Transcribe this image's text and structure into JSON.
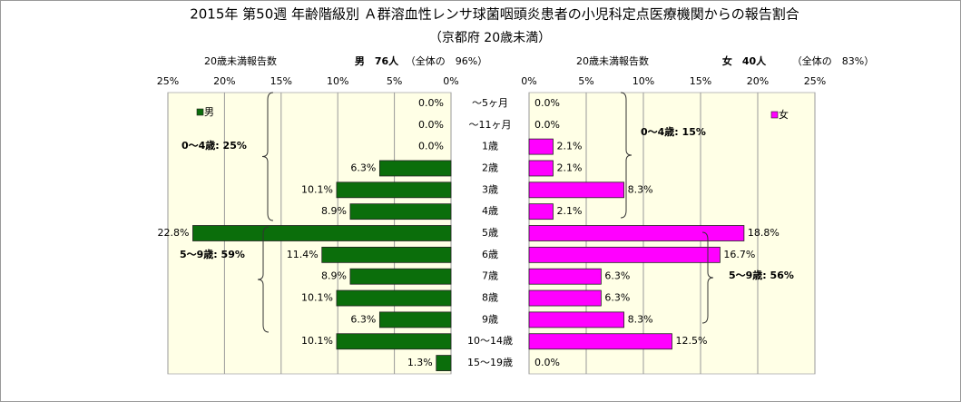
{
  "chart_data": {
    "type": "butterfly",
    "title": "2015年 第50週 年齢階級別 Ａ群溶血性レンサ球菌咽頭炎患者の小児科定点医療機関からの報告割合",
    "subtitle": "（京都府 20歳未満）",
    "categories": [
      "～5ヶ月",
      "～11ヶ月",
      "1歳",
      "2歳",
      "3歳",
      "4歳",
      "5歳",
      "6歳",
      "7歳",
      "8歳",
      "9歳",
      "10～14歳",
      "15～19歳"
    ],
    "series": [
      {
        "name": "男",
        "color": "#0b6e0b",
        "header": {
          "label": "20歳未満報告数",
          "count": "男　76人",
          "share": "（全体の　96%）"
        },
        "values": [
          0.0,
          0.0,
          0.0,
          6.3,
          10.1,
          8.9,
          22.8,
          11.4,
          8.9,
          10.1,
          6.3,
          10.1,
          1.3
        ],
        "value_labels": [
          "0.0%",
          "0.0%",
          "0.0%",
          "6.3%",
          "10.1%",
          "8.9%",
          "22.8%",
          "11.4%",
          "8.9%",
          "10.1%",
          "6.3%",
          "10.1%",
          "1.3%"
        ],
        "xlim": [
          0,
          25
        ],
        "xticks": [
          {
            "value": 0,
            "label": "0%"
          },
          {
            "value": 5,
            "label": "5%"
          },
          {
            "value": 10,
            "label": "10%"
          },
          {
            "value": 15,
            "label": "15%"
          },
          {
            "value": 20,
            "label": "20%"
          },
          {
            "value": 25,
            "label": "25%"
          }
        ],
        "annotations": [
          "0～4歳: 25%",
          "5～9歳: 59%"
        ]
      },
      {
        "name": "女",
        "color": "#ff00ff",
        "header": {
          "label": "20歳未満報告数",
          "count": "女　40人",
          "share": "（全体の　83%）"
        },
        "values": [
          0.0,
          0.0,
          2.1,
          2.1,
          8.3,
          2.1,
          18.8,
          16.7,
          6.3,
          6.3,
          8.3,
          12.5,
          0.0
        ],
        "value_labels": [
          "0.0%",
          "0.0%",
          "2.1%",
          "2.1%",
          "8.3%",
          "2.1%",
          "18.8%",
          "16.7%",
          "6.3%",
          "6.3%",
          "8.3%",
          "12.5%",
          "0.0%"
        ],
        "xlim": [
          0,
          25
        ],
        "xticks": [
          {
            "value": 0,
            "label": "0%"
          },
          {
            "value": 5,
            "label": "5%"
          },
          {
            "value": 10,
            "label": "10%"
          },
          {
            "value": 15,
            "label": "15%"
          },
          {
            "value": 20,
            "label": "20%"
          },
          {
            "value": 25,
            "label": "25%"
          }
        ],
        "annotations": [
          "0～4歳: 15%",
          "5～9歳: 56%"
        ]
      }
    ],
    "grid": true
  }
}
